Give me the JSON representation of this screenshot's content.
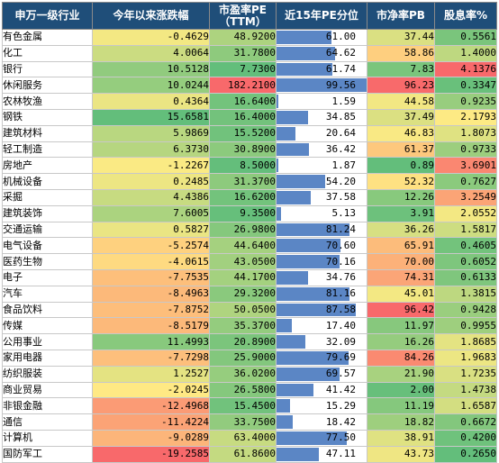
{
  "chart_data": {
    "type": "table",
    "columns": [
      "申万一级行业",
      "今年以来涨跌幅",
      "市盈率PE\n（TTM）",
      "近15年PE分位",
      "市净率PB",
      "股息率%"
    ],
    "rows": [
      {
        "name": "有色金属",
        "change": "-0.4629",
        "pe": "48.9200",
        "pe_pct": "61.00",
        "pb": "37.44",
        "div": "0.5561"
      },
      {
        "name": "化工",
        "change": "4.0064",
        "pe": "31.7800",
        "pe_pct": "64.62",
        "pb": "58.86",
        "div": "1.4000"
      },
      {
        "name": "银行",
        "change": "10.5128",
        "pe": "7.7300",
        "pe_pct": "61.74",
        "pb": "7.83",
        "div": "4.1376"
      },
      {
        "name": "休闲服务",
        "change": "10.0244",
        "pe": "182.2100",
        "pe_pct": "99.56",
        "pb": "96.23",
        "div": "0.3347"
      },
      {
        "name": "农林牧渔",
        "change": "0.4364",
        "pe": "16.6400",
        "pe_pct": "1.59",
        "pb": "44.58",
        "div": "0.9235"
      },
      {
        "name": "钢铁",
        "change": "15.6581",
        "pe": "16.4000",
        "pe_pct": "34.85",
        "pb": "37.49",
        "div": "2.1793"
      },
      {
        "name": "建筑材料",
        "change": "5.9869",
        "pe": "15.5200",
        "pe_pct": "20.64",
        "pb": "46.83",
        "div": "1.8073"
      },
      {
        "name": "轻工制造",
        "change": "6.3730",
        "pe": "30.8900",
        "pe_pct": "36.42",
        "pb": "61.37",
        "div": "0.9733"
      },
      {
        "name": "房地产",
        "change": "-1.2267",
        "pe": "8.5000",
        "pe_pct": "1.87",
        "pb": "0.89",
        "div": "3.6901"
      },
      {
        "name": "机械设备",
        "change": "0.2485",
        "pe": "31.3700",
        "pe_pct": "54.20",
        "pb": "52.32",
        "div": "0.7627"
      },
      {
        "name": "采掘",
        "change": "4.4386",
        "pe": "16.6200",
        "pe_pct": "37.58",
        "pb": "12.26",
        "div": "3.2549"
      },
      {
        "name": "建筑装饰",
        "change": "7.6005",
        "pe": "9.3500",
        "pe_pct": "5.13",
        "pb": "3.91",
        "div": "2.0552"
      },
      {
        "name": "交通运输",
        "change": "0.5827",
        "pe": "26.9800",
        "pe_pct": "81.24",
        "pb": "36.26",
        "div": "1.5817"
      },
      {
        "name": "电气设备",
        "change": "-5.2574",
        "pe": "44.6400",
        "pe_pct": "70.60",
        "pb": "65.91",
        "div": "0.4605"
      },
      {
        "name": "医药生物",
        "change": "-4.0615",
        "pe": "43.0500",
        "pe_pct": "70.16",
        "pb": "70.00",
        "div": "0.6052"
      },
      {
        "name": "电子",
        "change": "-7.7535",
        "pe": "44.1700",
        "pe_pct": "34.76",
        "pb": "74.31",
        "div": "0.6133"
      },
      {
        "name": "汽车",
        "change": "-8.4963",
        "pe": "29.3200",
        "pe_pct": "81.16",
        "pb": "45.01",
        "div": "1.3815"
      },
      {
        "name": "食品饮料",
        "change": "-7.8752",
        "pe": "50.0500",
        "pe_pct": "87.58",
        "pb": "96.42",
        "div": "0.9428"
      },
      {
        "name": "传媒",
        "change": "-8.5179",
        "pe": "35.3700",
        "pe_pct": "17.40",
        "pb": "11.97",
        "div": "0.9955"
      },
      {
        "name": "公用事业",
        "change": "11.4993",
        "pe": "20.8900",
        "pe_pct": "32.09",
        "pb": "16.26",
        "div": "1.8685"
      },
      {
        "name": "家用电器",
        "change": "-7.7298",
        "pe": "25.9000",
        "pe_pct": "79.69",
        "pb": "84.26",
        "div": "1.9683"
      },
      {
        "name": "纺织服装",
        "change": "1.2527",
        "pe": "36.0200",
        "pe_pct": "69.57",
        "pb": "21.90",
        "div": "1.7235"
      },
      {
        "name": "商业贸易",
        "change": "-2.0245",
        "pe": "26.5800",
        "pe_pct": "41.42",
        "pb": "2.00",
        "div": "1.4738"
      },
      {
        "name": "非银金融",
        "change": "-12.4968",
        "pe": "15.4500",
        "pe_pct": "15.29",
        "pb": "11.19",
        "div": "1.6587"
      },
      {
        "name": "通信",
        "change": "-11.4224",
        "pe": "33.7500",
        "pe_pct": "18.42",
        "pb": "18.82",
        "div": "0.6672"
      },
      {
        "name": "计算机",
        "change": "-9.0289",
        "pe": "63.4000",
        "pe_pct": "77.50",
        "pb": "38.91",
        "div": "0.4200"
      },
      {
        "name": "国防军工",
        "change": "-19.2585",
        "pe": "61.8600",
        "pe_pct": "47.11",
        "pb": "43.73",
        "div": "0.2650"
      }
    ]
  }
}
